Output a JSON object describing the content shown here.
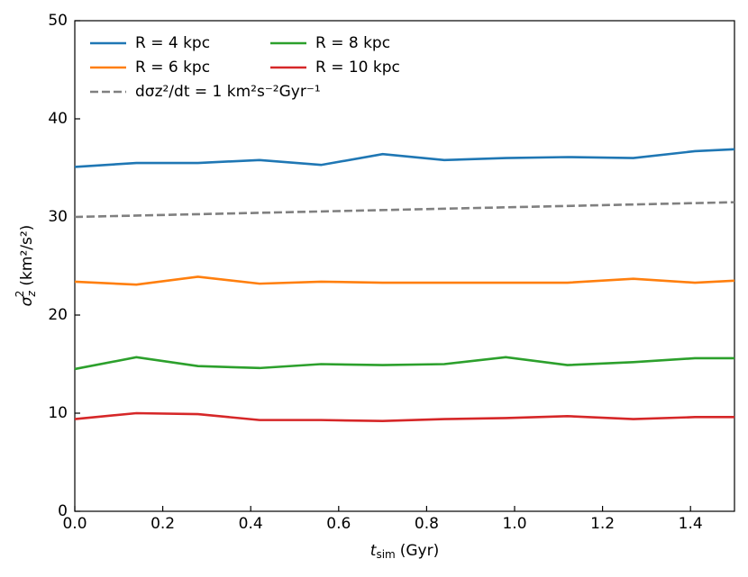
{
  "chart_data": {
    "type": "line",
    "x_label": {
      "symbol": "t",
      "subscript": "sim",
      "text": "(Gyr)"
    },
    "y_label": {
      "symbol": "σ",
      "subscript": "z",
      "superscript": "2",
      "text": "(km²/s²)"
    },
    "xlim": [
      0,
      1.5
    ],
    "ylim": [
      0,
      50
    ],
    "xticks": [
      {
        "value": 0,
        "label": "0.0"
      },
      {
        "value": 0.2,
        "label": "0.2"
      },
      {
        "value": 0.4,
        "label": "0.4"
      },
      {
        "value": 0.6,
        "label": "0.6"
      },
      {
        "value": 0.8,
        "label": "0.8"
      },
      {
        "value": 1,
        "label": "1.0"
      },
      {
        "value": 1.2,
        "label": "1.2"
      },
      {
        "value": 1.4,
        "label": "1.4"
      }
    ],
    "yticks": [
      0,
      10,
      20,
      30,
      40,
      50
    ],
    "legend": "upper left",
    "series": [
      {
        "name": "R = 4 kpc",
        "color": "#1f77b4",
        "x": [
          0,
          0.14,
          0.28,
          0.42,
          0.56,
          0.7,
          0.84,
          0.98,
          1.12,
          1.27,
          1.41,
          1.5
        ],
        "values": [
          35.1,
          35.5,
          35.5,
          35.8,
          35.3,
          36.4,
          35.8,
          36.0,
          36.1,
          36.0,
          36.7,
          36.9
        ]
      },
      {
        "name": "R = 6 kpc",
        "color": "#ff7f0e",
        "x": [
          0,
          0.14,
          0.28,
          0.42,
          0.56,
          0.7,
          0.84,
          0.98,
          1.12,
          1.27,
          1.41,
          1.5
        ],
        "values": [
          23.4,
          23.1,
          23.9,
          23.2,
          23.4,
          23.3,
          23.3,
          23.3,
          23.3,
          23.7,
          23.3,
          23.5
        ]
      },
      {
        "name": "R = 8 kpc",
        "color": "#2ca02c",
        "x": [
          0,
          0.14,
          0.28,
          0.42,
          0.56,
          0.7,
          0.84,
          0.98,
          1.12,
          1.27,
          1.41,
          1.5
        ],
        "values": [
          14.5,
          15.7,
          14.8,
          14.6,
          15.0,
          14.9,
          15.0,
          15.7,
          14.9,
          15.2,
          15.6,
          15.6
        ]
      },
      {
        "name": "R = 10 kpc",
        "color": "#d62728",
        "x": [
          0,
          0.14,
          0.28,
          0.42,
          0.56,
          0.7,
          0.84,
          0.98,
          1.12,
          1.27,
          1.41,
          1.5
        ],
        "values": [
          9.4,
          10.0,
          9.9,
          9.3,
          9.3,
          9.2,
          9.4,
          9.5,
          9.7,
          9.4,
          9.6,
          9.6
        ]
      },
      {
        "name": "dσz²/dt = 1 km²s⁻²Gyr⁻¹",
        "color": "#808080",
        "dashed": true,
        "x": [
          0,
          1.5
        ],
        "values": [
          30,
          31.5
        ]
      }
    ]
  }
}
